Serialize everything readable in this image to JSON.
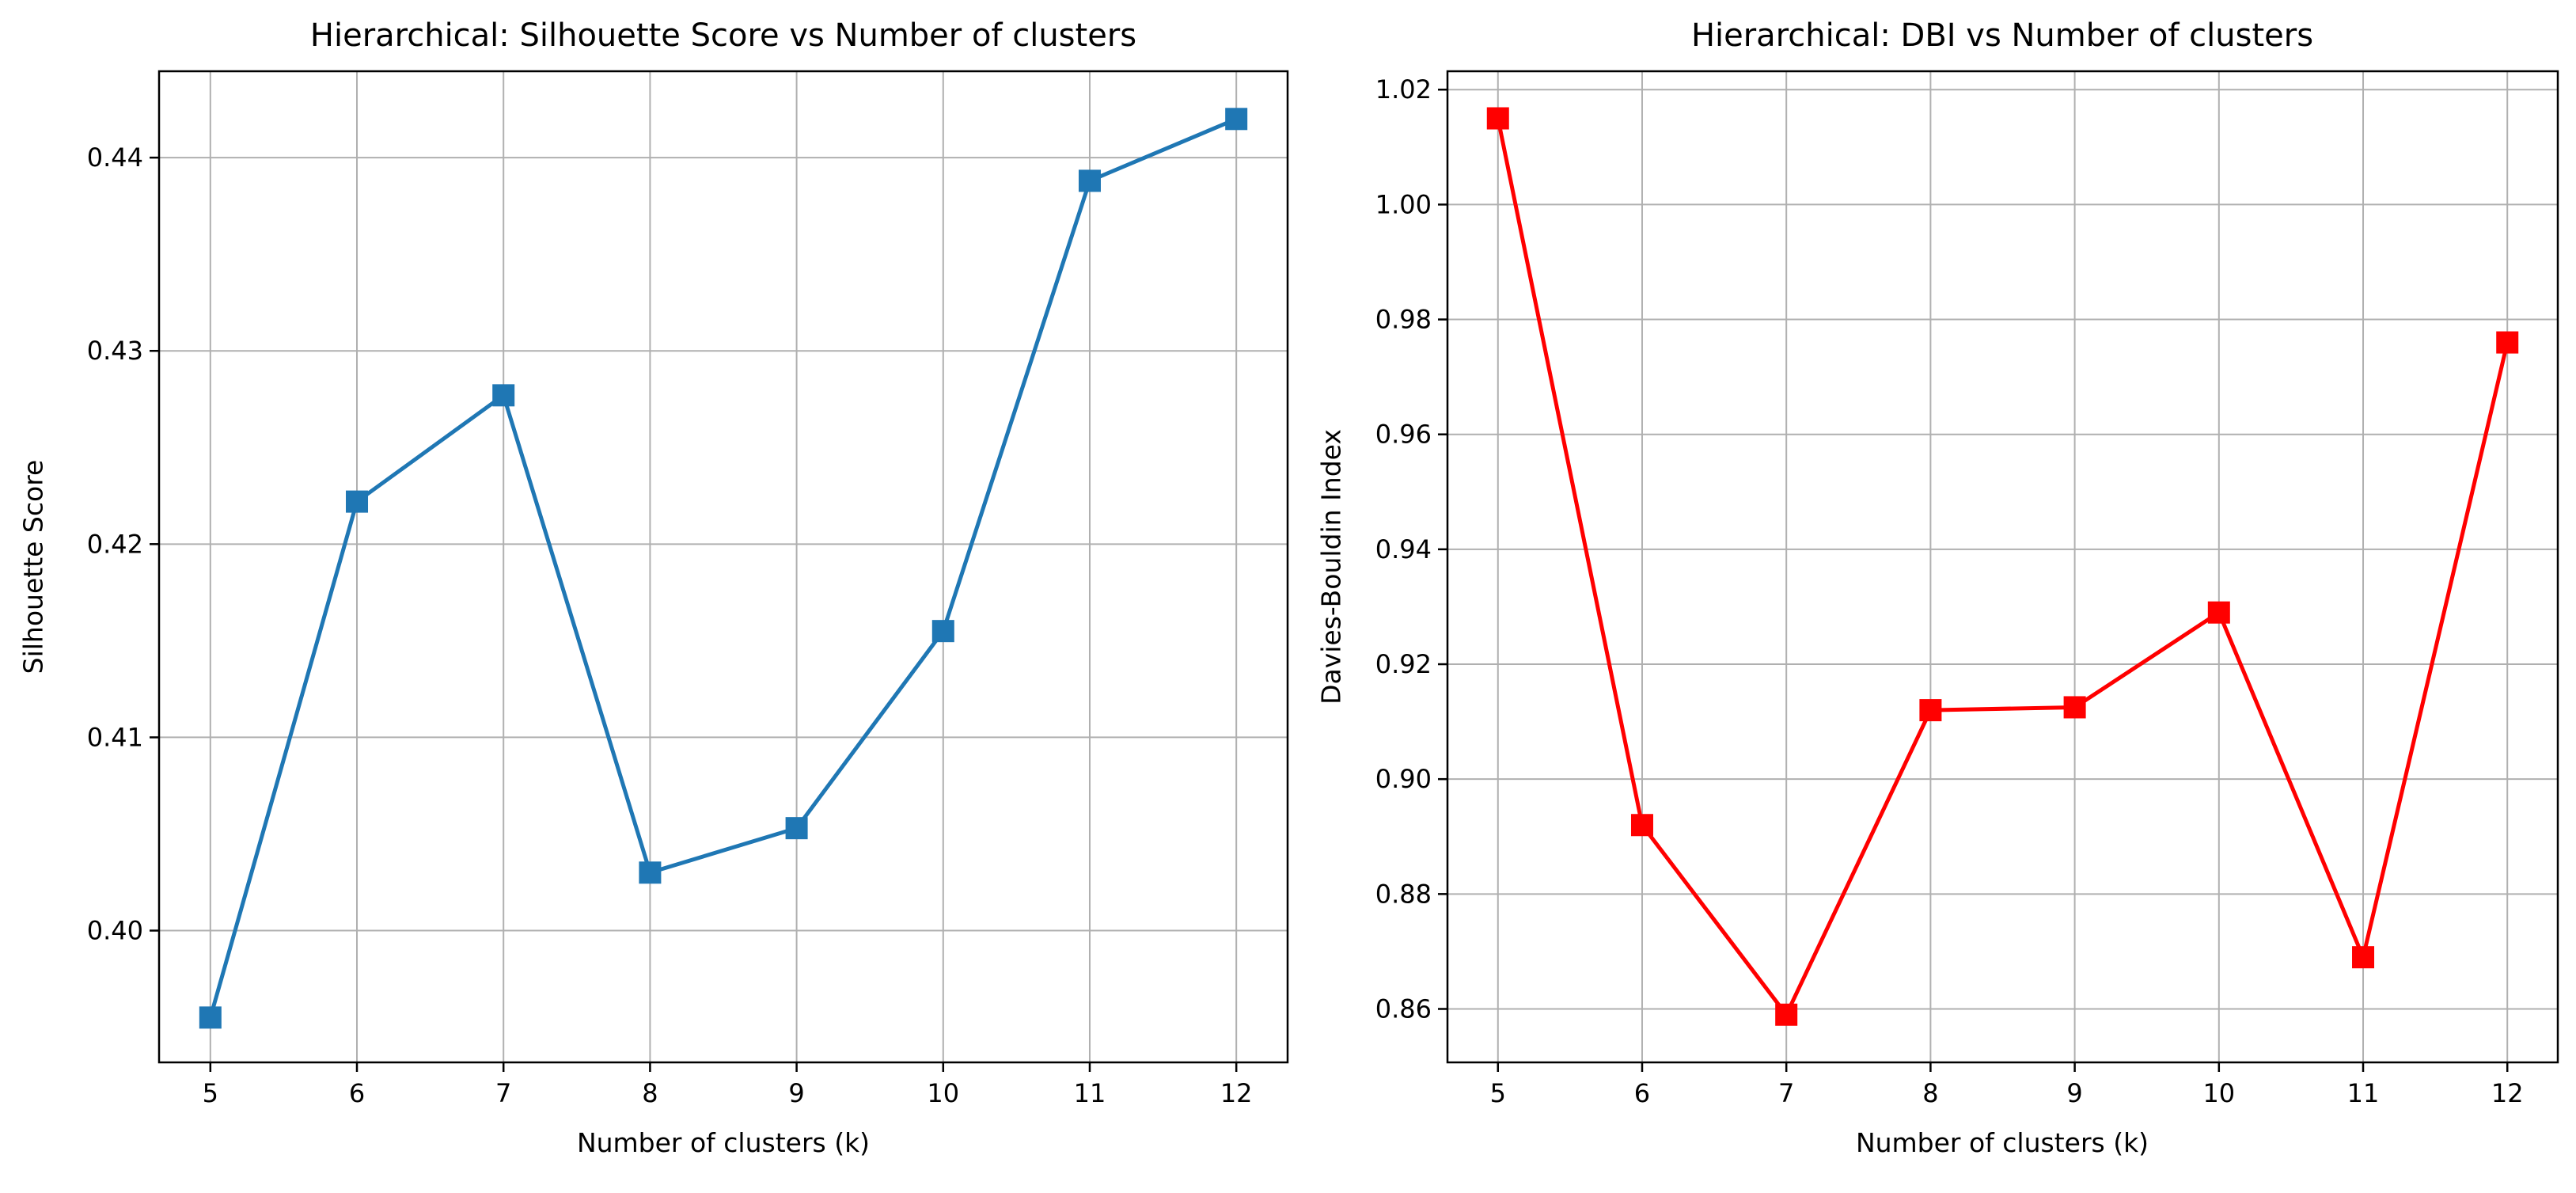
{
  "figure": {
    "background": "#ffffff",
    "grid_color": "#b0b0b0",
    "spine_color": "#000000",
    "text_color": "#000000"
  },
  "chart_data": [
    {
      "type": "line",
      "title": "Hierarchical: Silhouette Score vs Number of clusters",
      "xlabel": "Number of clusters (k)",
      "ylabel": "Silhouette Score",
      "series_name": "silhouette-score",
      "x": [
        5,
        6,
        7,
        8,
        9,
        10,
        11,
        12
      ],
      "values": [
        0.3955,
        0.4222,
        0.4277,
        0.403,
        0.4053,
        0.4155,
        0.4388,
        0.442
      ],
      "line_color": "#1f77b4",
      "marker": "square",
      "grid": true,
      "legend": "none",
      "xticks": [
        5,
        6,
        7,
        8,
        9,
        10,
        11,
        12
      ],
      "xtick_labels": [
        "5",
        "6",
        "7",
        "8",
        "9",
        "10",
        "11",
        "12"
      ],
      "yticks": [
        0.4,
        0.41,
        0.42,
        0.43,
        0.44
      ],
      "ytick_labels": [
        "0.40",
        "0.41",
        "0.42",
        "0.43",
        "0.44"
      ],
      "xlim": [
        4.65,
        12.35
      ],
      "ylim": [
        0.39318,
        0.44447
      ]
    },
    {
      "type": "line",
      "title": "Hierarchical: DBI vs Number of clusters",
      "xlabel": "Number of clusters (k)",
      "ylabel": "Davies-Bouldin Index",
      "series_name": "davies-bouldin-index",
      "x": [
        5,
        6,
        7,
        8,
        9,
        10,
        11,
        12
      ],
      "values": [
        1.015,
        0.892,
        0.859,
        0.912,
        0.9125,
        0.929,
        0.869,
        0.976
      ],
      "line_color": "#ff0000",
      "marker": "square",
      "grid": true,
      "legend": "none",
      "xticks": [
        5,
        6,
        7,
        8,
        9,
        10,
        11,
        12
      ],
      "xtick_labels": [
        "5",
        "6",
        "7",
        "8",
        "9",
        "10",
        "11",
        "12"
      ],
      "yticks": [
        0.86,
        0.88,
        0.9,
        0.92,
        0.94,
        0.96,
        0.98,
        1.0,
        1.02
      ],
      "ytick_labels": [
        "0.86",
        "0.88",
        "0.90",
        "0.92",
        "0.94",
        "0.96",
        "0.98",
        "1.00",
        "1.02"
      ],
      "xlim": [
        4.65,
        12.35
      ],
      "ylim": [
        0.8507,
        1.0232
      ]
    }
  ]
}
